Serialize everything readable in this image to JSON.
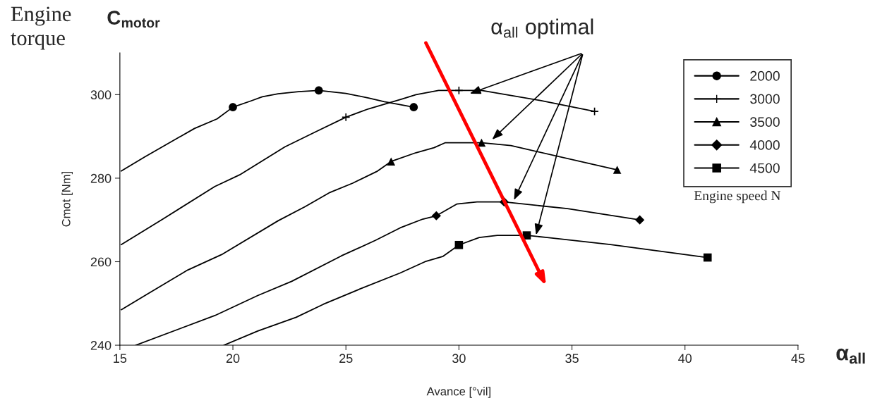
{
  "chart_data": {
    "type": "line",
    "annotations": [
      "Engine torque",
      "C$_{motor}$",
      "α$_{all}$",
      {
        "text": "α$_{all}$ optimal",
        "x": 30.4,
        "y": 300.1
      }
    ],
    "xlabel": "Avance [°vil]",
    "ylabel": "Cmot [Nm]",
    "legend_title": "Engine speed N",
    "xlim": [
      15,
      45
    ],
    "xticks": [
      15,
      20,
      25,
      30,
      35,
      40,
      45
    ],
    "ylim": [
      240,
      310
    ],
    "yticks": [
      240,
      260,
      280,
      300
    ],
    "grid": false,
    "legend": "top right",
    "line_style": "solid",
    "series": [
      {
        "name": "2000",
        "color": "#000000",
        "marker": "none",
        "x": [
          15.06,
          16.1,
          18.3,
          19.3,
          20,
          20.8,
          21.3,
          22,
          22.9,
          23.8,
          25,
          26,
          26.7,
          28
        ],
        "values": [
          281.7,
          285.1,
          291.9,
          294.2,
          297,
          298.5,
          299.5,
          300.2,
          300.7,
          301,
          300.3,
          299.2,
          298.3,
          297
        ]
      },
      {
        "type": "scatter",
        "color": "#000000",
        "marker": "circle",
        "x": [
          20,
          23.8,
          28
        ],
        "values": [
          297,
          301,
          297
        ]
      },
      {
        "name": "3000",
        "color": "#000000",
        "marker": "none",
        "x": [
          15.06,
          16.9,
          19.2,
          20.3,
          22.3,
          23.7,
          25,
          26,
          27.5,
          28.1,
          29.1,
          30,
          31,
          33.6,
          36
        ],
        "values": [
          264.1,
          270.2,
          278,
          280.8,
          287.5,
          291.2,
          294.6,
          296.6,
          299,
          300,
          301,
          301,
          301,
          298.6,
          296
        ]
      },
      {
        "type": "scatter",
        "color": "#000000",
        "marker": "cross",
        "x": [
          25,
          30,
          36
        ],
        "values": [
          294.6,
          301,
          296
        ]
      },
      {
        "name": "3500",
        "color": "#000000",
        "marker": "none",
        "x": [
          15.06,
          16.2,
          18,
          19.5,
          22,
          23.2,
          24.3,
          25.3,
          26.4,
          27,
          28.1,
          28.9,
          29.4,
          31,
          32.3,
          37
        ],
        "values": [
          248.5,
          252.2,
          258,
          261.7,
          269.8,
          273.2,
          276.6,
          278.8,
          281.7,
          284,
          286.1,
          287.3,
          288.5,
          288.5,
          287.8,
          282
        ]
      },
      {
        "type": "scatter",
        "color": "#000000",
        "marker": "triangle",
        "x": [
          27,
          31,
          37
        ],
        "values": [
          284,
          288.5,
          282
        ]
      },
      {
        "name": "4000",
        "color": "#000000",
        "marker": "none",
        "x": [
          15.7,
          19.2,
          21.1,
          22.6,
          24.8,
          26.3,
          27.4,
          28.4,
          29,
          29.9,
          30.8,
          32,
          34.8,
          38
        ],
        "values": [
          240,
          247.1,
          251.9,
          255.3,
          261.4,
          265.1,
          268.1,
          270.2,
          271,
          273.8,
          274.3,
          274.3,
          272.7,
          270
        ]
      },
      {
        "type": "scatter",
        "color": "#000000",
        "marker": "diamond",
        "x": [
          29,
          32,
          38
        ],
        "values": [
          271,
          274.3,
          270
        ]
      },
      {
        "name": "4500",
        "color": "#000000",
        "marker": "none",
        "x": [
          19.6,
          21.1,
          22.8,
          24,
          25.5,
          27.4,
          28.5,
          29.3,
          30,
          30.9,
          31.7,
          33,
          33.9,
          36.7,
          41
        ],
        "values": [
          240,
          243.4,
          246.7,
          249.8,
          253.2,
          257.3,
          260,
          261.3,
          264,
          265.8,
          266.3,
          266.3,
          265.8,
          264.1,
          261
        ]
      },
      {
        "type": "scatter",
        "color": "#000000",
        "marker": "square",
        "x": [
          30,
          33,
          41
        ],
        "values": [
          264,
          266.3,
          261
        ]
      }
    ]
  }
}
